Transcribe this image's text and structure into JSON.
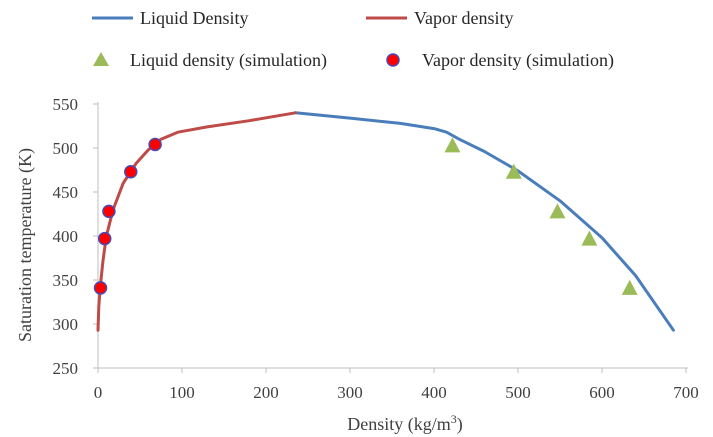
{
  "chart_data": {
    "type": "scatter",
    "xlabel": "Density (kg/m",
    "xlabel_sup": "3",
    "xlabel_end": ")",
    "ylabel": "Saturation temperature (K)",
    "xlim": [
      0,
      700
    ],
    "ylim": [
      250,
      550
    ],
    "x_ticks": [
      0,
      100,
      200,
      300,
      400,
      500,
      600,
      700
    ],
    "y_ticks": [
      250,
      300,
      350,
      400,
      450,
      500,
      550
    ],
    "grid": false,
    "legend_position": "top",
    "colors": {
      "liquid_line": "#4a7ebb",
      "vapor_line": "#be4b48",
      "liquid_marker": "#9bbb59",
      "vapor_marker_fill": "#ff0000",
      "vapor_marker_edge": "#4a4ab0",
      "axis": "#bfbfbf"
    },
    "series": [
      {
        "name": "Liquid Density",
        "kind": "line",
        "points": [
          [
            235,
            540
          ],
          [
            300,
            534
          ],
          [
            360,
            528
          ],
          [
            400,
            522
          ],
          [
            415,
            518
          ],
          [
            430,
            510
          ],
          [
            460,
            496
          ],
          [
            500,
            474
          ],
          [
            550,
            440
          ],
          [
            600,
            398
          ],
          [
            640,
            355
          ],
          [
            685,
            293
          ]
        ]
      },
      {
        "name": "Vapor density",
        "kind": "line",
        "points": [
          [
            0,
            293
          ],
          [
            1,
            320
          ],
          [
            3,
            345
          ],
          [
            6,
            372
          ],
          [
            10,
            400
          ],
          [
            18,
            430
          ],
          [
            30,
            460
          ],
          [
            45,
            482
          ],
          [
            60,
            498
          ],
          [
            75,
            510
          ],
          [
            95,
            518
          ],
          [
            130,
            524
          ],
          [
            180,
            531
          ],
          [
            235,
            540
          ]
        ]
      },
      {
        "name": "Liquid density (simulation)",
        "kind": "triangle",
        "points": [
          [
            422,
            503
          ],
          [
            495,
            473
          ],
          [
            547,
            428
          ],
          [
            585,
            397
          ],
          [
            633,
            341
          ]
        ]
      },
      {
        "name": "Vapor density (simulation)",
        "kind": "circle",
        "points": [
          [
            3,
            341
          ],
          [
            8,
            397
          ],
          [
            13,
            428
          ],
          [
            39,
            473
          ],
          [
            68,
            504
          ]
        ]
      }
    ]
  }
}
